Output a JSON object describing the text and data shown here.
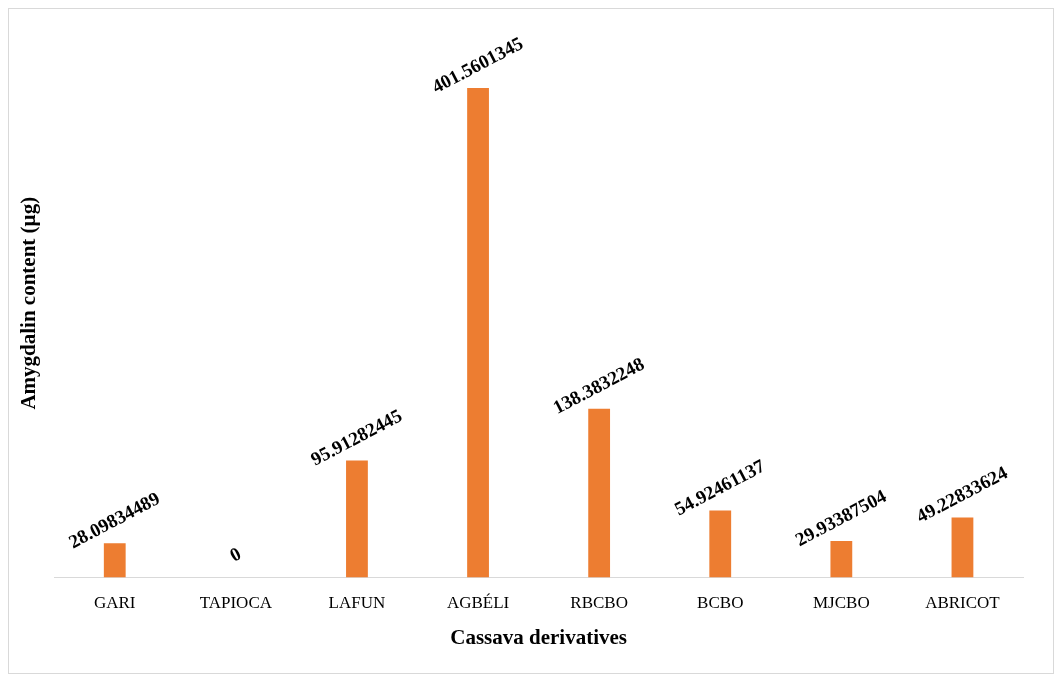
{
  "chart_data": {
    "type": "bar",
    "xlabel": "Cassava derivatives",
    "ylabel": "Amygdalin content (µg)",
    "categories": [
      "GARI",
      "TAPIOCA",
      "LAFUN",
      "AGBÉLI",
      "RBCBO",
      "BCBO",
      "MJCBO",
      "ABRICOT"
    ],
    "values": [
      28.09834489,
      0,
      95.91282445,
      401.5601345,
      138.3832248,
      54.92461137,
      29.93387504,
      49.22833624
    ],
    "color": "#ed7d31",
    "data_labels": true,
    "grid": false,
    "legend": false
  }
}
